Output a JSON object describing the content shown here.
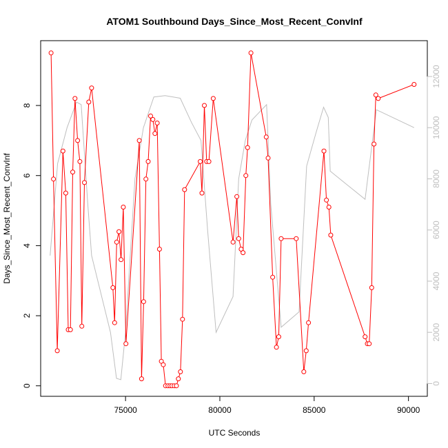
{
  "chart_data": {
    "type": "line",
    "title": "ATOM1 Southbound Days_Since_Most_Recent_ConvInf",
    "xlabel": "UTC Seconds",
    "ylabel": "Days_Since_Most_Recent_ConvInf",
    "xlim": [
      70500,
      91000
    ],
    "ylim": [
      -0.3,
      9.85
    ],
    "y2lim": [
      -500,
      13400
    ],
    "x_ticks": [
      75000,
      80000,
      85000,
      90000
    ],
    "y_ticks": [
      0,
      2,
      4,
      6,
      8
    ],
    "y2_ticks": [
      0,
      2000,
      4000,
      6000,
      8000,
      10000,
      12000
    ],
    "x_tick_labels": [
      "75000",
      "80000",
      "85000",
      "90000"
    ],
    "y_tick_labels": [
      "0",
      "2",
      "4",
      "6",
      "8"
    ],
    "y2_tick_labels": [
      "0",
      "2000",
      "4000",
      "6000",
      "8000",
      "10000",
      "12000"
    ],
    "grid": false,
    "colors": {
      "primary": "#ff0000",
      "secondary": "#bebebe",
      "axis": "#000000"
    },
    "series": [
      {
        "axis": "left",
        "marker": "open-circle",
        "points": [
          [
            71050,
            9.5
          ],
          [
            71180,
            5.9
          ],
          [
            71380,
            1.0
          ],
          [
            71680,
            6.7
          ],
          [
            71830,
            5.5
          ],
          [
            71960,
            1.6
          ],
          [
            72080,
            1.6
          ],
          [
            72200,
            6.1
          ],
          [
            72320,
            8.2
          ],
          [
            72460,
            7.0
          ],
          [
            72580,
            6.4
          ],
          [
            72680,
            1.7
          ],
          [
            72820,
            5.8
          ],
          [
            73050,
            8.1
          ],
          [
            73200,
            8.5
          ],
          [
            74330,
            2.8
          ],
          [
            74420,
            1.8
          ],
          [
            74530,
            4.1
          ],
          [
            74650,
            4.4
          ],
          [
            74760,
            3.6
          ],
          [
            74880,
            5.1
          ],
          [
            75020,
            1.2
          ],
          [
            75730,
            7.0
          ],
          [
            75850,
            0.2
          ],
          [
            75960,
            2.4
          ],
          [
            76080,
            5.9
          ],
          [
            76200,
            6.4
          ],
          [
            76330,
            7.7
          ],
          [
            76450,
            7.6
          ],
          [
            76560,
            7.2
          ],
          [
            76680,
            7.5
          ],
          [
            76800,
            3.9
          ],
          [
            76900,
            0.7
          ],
          [
            77000,
            0.6
          ],
          [
            77120,
            0.0
          ],
          [
            77250,
            0.0
          ],
          [
            77360,
            0.0
          ],
          [
            77460,
            0.0
          ],
          [
            77580,
            0.0
          ],
          [
            77700,
            0.0
          ],
          [
            77800,
            0.2
          ],
          [
            77910,
            0.4
          ],
          [
            78020,
            1.9
          ],
          [
            78130,
            5.6
          ],
          [
            78960,
            6.4
          ],
          [
            79050,
            5.5
          ],
          [
            79180,
            8.0
          ],
          [
            79300,
            6.4
          ],
          [
            79420,
            6.4
          ],
          [
            79650,
            8.2
          ],
          [
            80700,
            4.1
          ],
          [
            80900,
            5.4
          ],
          [
            81000,
            4.2
          ],
          [
            81130,
            3.9
          ],
          [
            81230,
            3.8
          ],
          [
            81380,
            6.0
          ],
          [
            81470,
            6.8
          ],
          [
            81650,
            9.5
          ],
          [
            82460,
            7.1
          ],
          [
            82560,
            6.5
          ],
          [
            82800,
            3.1
          ],
          [
            83000,
            1.1
          ],
          [
            83120,
            1.4
          ],
          [
            83250,
            4.2
          ],
          [
            84050,
            4.2
          ],
          [
            84450,
            0.4
          ],
          [
            84580,
            1.0
          ],
          [
            84700,
            1.8
          ],
          [
            85520,
            6.7
          ],
          [
            85650,
            5.3
          ],
          [
            85780,
            5.1
          ],
          [
            85880,
            4.3
          ],
          [
            87700,
            1.4
          ],
          [
            87820,
            1.2
          ],
          [
            87920,
            1.2
          ],
          [
            88050,
            2.8
          ],
          [
            88170,
            6.9
          ],
          [
            88270,
            8.3
          ],
          [
            88400,
            8.2
          ],
          [
            90300,
            8.6
          ]
        ]
      },
      {
        "axis": "right",
        "marker": "none",
        "points": [
          [
            71000,
            5000
          ],
          [
            71400,
            8600
          ],
          [
            71900,
            10000
          ],
          [
            72400,
            11000
          ],
          [
            72650,
            10900
          ],
          [
            73000,
            7000
          ],
          [
            73200,
            5000
          ],
          [
            74200,
            2000
          ],
          [
            74520,
            200
          ],
          [
            74750,
            150
          ],
          [
            75000,
            2000
          ],
          [
            75500,
            8000
          ],
          [
            75950,
            10000
          ],
          [
            76500,
            11200
          ],
          [
            77100,
            11250
          ],
          [
            77900,
            11150
          ],
          [
            78500,
            10200
          ],
          [
            79000,
            9500
          ],
          [
            79350,
            6000
          ],
          [
            79800,
            2000
          ],
          [
            80700,
            3400
          ],
          [
            81000,
            8000
          ],
          [
            81350,
            9500
          ],
          [
            81700,
            10300
          ],
          [
            82480,
            10900
          ],
          [
            82700,
            7000
          ],
          [
            83250,
            2200
          ],
          [
            84200,
            2800
          ],
          [
            84600,
            8500
          ],
          [
            85100,
            9800
          ],
          [
            85500,
            10800
          ],
          [
            85750,
            10400
          ],
          [
            85850,
            8300
          ],
          [
            87700,
            7200
          ],
          [
            88300,
            10700
          ],
          [
            90300,
            10000
          ]
        ]
      }
    ]
  }
}
